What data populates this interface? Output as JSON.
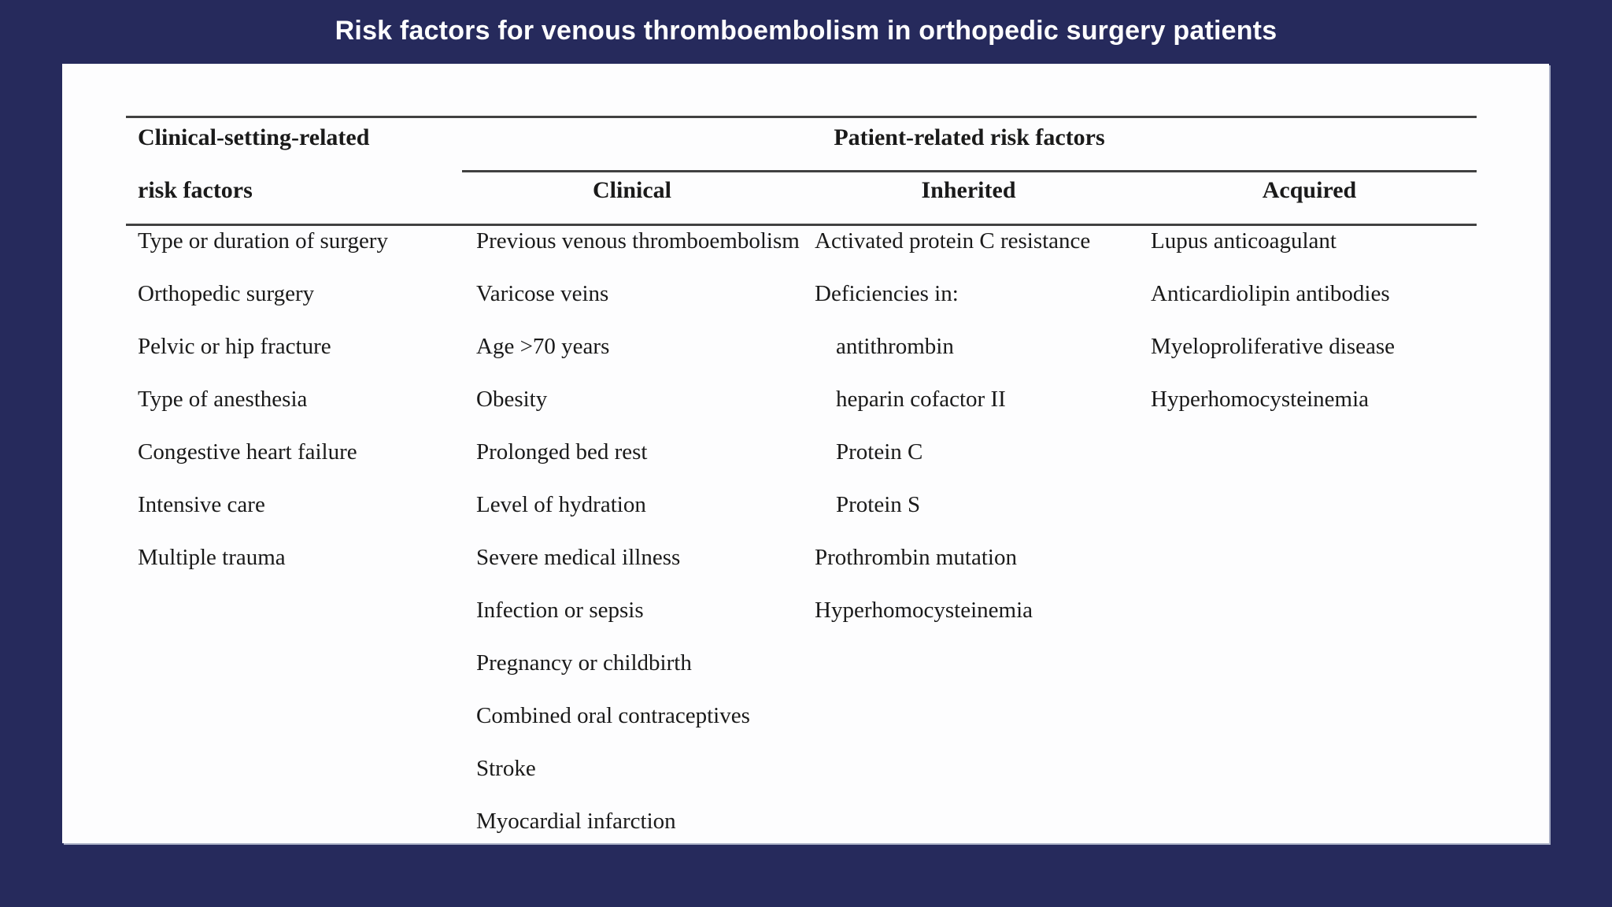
{
  "title": "Risk factors for venous thromboembolism in orthopedic surgery patients",
  "table": {
    "col1_header": {
      "line1": "Clinical-setting-related",
      "line2": "risk factors"
    },
    "group_header": "Patient-related risk factors",
    "subheaders": [
      "Clinical",
      "Inherited",
      "Acquired"
    ],
    "columns": {
      "clinical_setting": [
        "Type or duration of surgery",
        "Orthopedic surgery",
        "Pelvic or hip fracture",
        "Type of anesthesia",
        "Congestive heart failure",
        "Intensive care",
        "Multiple trauma"
      ],
      "clinical": [
        "Previous venous thromboembolism",
        "Varicose veins",
        "Age >70 years",
        "Obesity",
        "Prolonged bed rest",
        "Level of hydration",
        "Severe medical illness",
        "Infection or sepsis",
        "Pregnancy or childbirth",
        "Combined oral contraceptives",
        "Stroke",
        "Myocardial infarction"
      ],
      "inherited": [
        {
          "text": "Activated protein C resistance",
          "indent": false
        },
        {
          "text": "Deficiencies in:",
          "indent": false
        },
        {
          "text": "antithrombin",
          "indent": true
        },
        {
          "text": "heparin cofactor II",
          "indent": true
        },
        {
          "text": "Protein C",
          "indent": true
        },
        {
          "text": "Protein S",
          "indent": true
        },
        {
          "text": "Prothrombin mutation",
          "indent": false
        },
        {
          "text": "Hyperhomocysteinemia",
          "indent": false
        }
      ],
      "acquired": [
        "Lupus anticoagulant",
        "Anticardiolipin antibodies",
        "Myeloproliferative disease",
        "Hyperhomocysteinemia"
      ]
    }
  },
  "colors": {
    "background": "#262a5c",
    "surface": "#fdfdfe",
    "rule": "#414141",
    "text": "#1a1a1a",
    "title_text": "#ffffff"
  }
}
